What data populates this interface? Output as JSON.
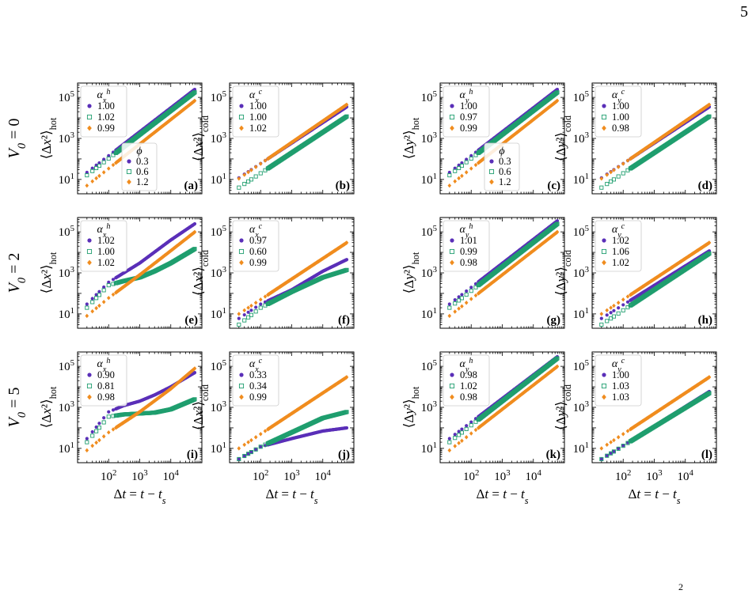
{
  "page_number": "5",
  "footer_mark": "2",
  "row_labels": [
    "V_0 = 0",
    "V_0 = 2",
    "V_0 = 5"
  ],
  "x_axis_label": "Δt = t − t_s",
  "x_tick_labels": [
    "10^2",
    "10^3",
    "10^4"
  ],
  "y_tick_labels": [
    "10^1",
    "10^3",
    "10^5"
  ],
  "phi_legend": {
    "title": "ϕ",
    "entries": [
      "0.3",
      "0.6",
      "1.2"
    ]
  },
  "colors": {
    "phi_0.3": "#5a2fb8",
    "phi_0.6": "#1f9e6e",
    "phi_1.2": "#f08c1e"
  },
  "chart_data": [
    {
      "panel": "(a)",
      "type": "scatter",
      "ylabel": "⟨Δx²⟩_hot",
      "legend_title": "α_x^h",
      "series": [
        {
          "name": "0.3",
          "alpha": "1.00",
          "x": [
            20,
            60000
          ],
          "y": [
            22,
            250000
          ]
        },
        {
          "name": "0.6",
          "alpha": "1.02",
          "x": [
            20,
            60000
          ],
          "y": [
            16,
            180000
          ]
        },
        {
          "name": "1.2",
          "alpha": "0.99",
          "x": [
            20,
            60000
          ],
          "y": [
            5,
            70000
          ]
        }
      ],
      "x_scale": "log",
      "y_scale": "log",
      "xlim": [
        10,
        100000
      ],
      "ylim": [
        2,
        500000
      ]
    },
    {
      "panel": "(b)",
      "type": "scatter",
      "ylabel": "⟨Δx²⟩_cold",
      "legend_title": "α_x^c",
      "series": [
        {
          "name": "0.3",
          "alpha": "1.00",
          "x": [
            20,
            60000
          ],
          "y": [
            12,
            35000
          ]
        },
        {
          "name": "0.6",
          "alpha": "1.00",
          "x": [
            20,
            60000
          ],
          "y": [
            4,
            12000
          ]
        },
        {
          "name": "1.2",
          "alpha": "1.02",
          "x": [
            20,
            60000
          ],
          "y": [
            11,
            45000
          ]
        }
      ],
      "x_scale": "log",
      "y_scale": "log",
      "xlim": [
        10,
        100000
      ],
      "ylim": [
        2,
        500000
      ]
    },
    {
      "panel": "(c)",
      "type": "scatter",
      "ylabel": "⟨Δy²⟩_hot",
      "legend_title": "α_y^h",
      "series": [
        {
          "name": "0.3",
          "alpha": "1.00",
          "x": [
            20,
            60000
          ],
          "y": [
            22,
            250000
          ]
        },
        {
          "name": "0.6",
          "alpha": "0.97",
          "x": [
            20,
            60000
          ],
          "y": [
            16,
            180000
          ]
        },
        {
          "name": "1.2",
          "alpha": "0.99",
          "x": [
            20,
            60000
          ],
          "y": [
            5,
            70000
          ]
        }
      ],
      "x_scale": "log",
      "y_scale": "log",
      "xlim": [
        10,
        100000
      ],
      "ylim": [
        2,
        500000
      ]
    },
    {
      "panel": "(d)",
      "type": "scatter",
      "ylabel": "⟨Δy²⟩_cold",
      "legend_title": "α_y^c",
      "series": [
        {
          "name": "0.3",
          "alpha": "1.00",
          "x": [
            20,
            60000
          ],
          "y": [
            12,
            35000
          ]
        },
        {
          "name": "0.6",
          "alpha": "1.00",
          "x": [
            20,
            60000
          ],
          "y": [
            4,
            12000
          ]
        },
        {
          "name": "1.2",
          "alpha": "0.98",
          "x": [
            20,
            60000
          ],
          "y": [
            11,
            45000
          ]
        }
      ],
      "x_scale": "log",
      "y_scale": "log",
      "xlim": [
        10,
        100000
      ],
      "ylim": [
        2,
        500000
      ]
    },
    {
      "panel": "(e)",
      "type": "scatter",
      "ylabel": "⟨Δx²⟩_hot",
      "legend_title": "α_x^h",
      "series": [
        {
          "name": "0.3",
          "alpha": "1.02",
          "x": [
            20,
            100,
            1000,
            10000,
            60000
          ],
          "y": [
            30,
            350,
            3000,
            40000,
            250000
          ]
        },
        {
          "name": "0.6",
          "alpha": "1.00",
          "x": [
            20,
            100,
            300,
            1000,
            3000,
            10000,
            60000
          ],
          "y": [
            20,
            250,
            400,
            600,
            1200,
            3000,
            15000
          ]
        },
        {
          "name": "1.2",
          "alpha": "1.02",
          "x": [
            20,
            100,
            1000,
            10000,
            60000
          ],
          "y": [
            8,
            60,
            800,
            12000,
            100000
          ]
        }
      ],
      "x_scale": "log",
      "y_scale": "log",
      "xlim": [
        10,
        100000
      ],
      "ylim": [
        2,
        500000
      ]
    },
    {
      "panel": "(f)",
      "type": "scatter",
      "ylabel": "⟨Δx²⟩_cold",
      "legend_title": "α_x^c",
      "series": [
        {
          "name": "0.3",
          "alpha": "0.97",
          "x": [
            20,
            100,
            1000,
            10000,
            60000
          ],
          "y": [
            6,
            30,
            150,
            1200,
            4500
          ]
        },
        {
          "name": "0.6",
          "alpha": "0.60",
          "x": [
            20,
            100,
            1000,
            10000,
            60000
          ],
          "y": [
            3,
            20,
            120,
            600,
            1400
          ]
        },
        {
          "name": "1.2",
          "alpha": "0.99",
          "x": [
            20,
            60000
          ],
          "y": [
            10,
            30000
          ]
        }
      ],
      "x_scale": "log",
      "y_scale": "log",
      "xlim": [
        10,
        100000
      ],
      "ylim": [
        2,
        500000
      ]
    },
    {
      "panel": "(g)",
      "type": "scatter",
      "ylabel": "⟨Δy²⟩_hot",
      "legend_title": "α_y^h",
      "series": [
        {
          "name": "0.3",
          "alpha": "1.01",
          "x": [
            20,
            60000
          ],
          "y": [
            30,
            350000
          ]
        },
        {
          "name": "0.6",
          "alpha": "0.99",
          "x": [
            20,
            60000
          ],
          "y": [
            20,
            250000
          ]
        },
        {
          "name": "1.2",
          "alpha": "0.98",
          "x": [
            20,
            60000
          ],
          "y": [
            8,
            100000
          ]
        }
      ],
      "x_scale": "log",
      "y_scale": "log",
      "xlim": [
        10,
        100000
      ],
      "ylim": [
        2,
        500000
      ]
    },
    {
      "panel": "(h)",
      "type": "scatter",
      "ylabel": "⟨Δy²⟩_cold",
      "legend_title": "α_y^c",
      "series": [
        {
          "name": "0.3",
          "alpha": "1.02",
          "x": [
            20,
            60000
          ],
          "y": [
            6,
            12000
          ]
        },
        {
          "name": "0.6",
          "alpha": "1.06",
          "x": [
            20,
            60000
          ],
          "y": [
            3,
            9000
          ]
        },
        {
          "name": "1.2",
          "alpha": "1.02",
          "x": [
            20,
            60000
          ],
          "y": [
            10,
            30000
          ]
        }
      ],
      "x_scale": "log",
      "y_scale": "log",
      "xlim": [
        10,
        100000
      ],
      "ylim": [
        2,
        500000
      ]
    },
    {
      "panel": "(i)",
      "type": "scatter",
      "ylabel": "⟨Δx²⟩_hot",
      "legend_title": "α_x^h",
      "series": [
        {
          "name": "0.3",
          "alpha": "0.90",
          "x": [
            20,
            100,
            300,
            1000,
            3000,
            10000,
            60000
          ],
          "y": [
            30,
            600,
            1200,
            2000,
            4000,
            10000,
            50000
          ]
        },
        {
          "name": "0.6",
          "alpha": "0.81",
          "x": [
            20,
            100,
            300,
            1000,
            3000,
            10000,
            60000
          ],
          "y": [
            20,
            350,
            450,
            500,
            550,
            800,
            2500
          ]
        },
        {
          "name": "1.2",
          "alpha": "0.98",
          "x": [
            20,
            100,
            1000,
            10000,
            60000
          ],
          "y": [
            8,
            60,
            600,
            8000,
            80000
          ]
        }
      ],
      "x_scale": "log",
      "y_scale": "log",
      "xlim": [
        10,
        100000
      ],
      "ylim": [
        2,
        500000
      ]
    },
    {
      "panel": "(j)",
      "type": "scatter",
      "ylabel": "⟨Δx²⟩_cold",
      "legend_title": "α_x^c",
      "series": [
        {
          "name": "0.3",
          "alpha": "0.33",
          "x": [
            20,
            100,
            1000,
            10000,
            60000
          ],
          "y": [
            3,
            12,
            30,
            70,
            100
          ]
        },
        {
          "name": "0.6",
          "alpha": "0.34",
          "x": [
            20,
            100,
            1000,
            10000,
            60000
          ],
          "y": [
            3,
            12,
            60,
            300,
            600
          ]
        },
        {
          "name": "1.2",
          "alpha": "0.99",
          "x": [
            20,
            60000
          ],
          "y": [
            10,
            30000
          ]
        }
      ],
      "x_scale": "log",
      "y_scale": "log",
      "xlim": [
        10,
        100000
      ],
      "ylim": [
        2,
        500000
      ]
    },
    {
      "panel": "(k)",
      "type": "scatter",
      "ylabel": "⟨Δy²⟩_hot",
      "legend_title": "α_y^h",
      "series": [
        {
          "name": "0.3",
          "alpha": "0.98",
          "x": [
            20,
            60000
          ],
          "y": [
            30,
            300000
          ]
        },
        {
          "name": "0.6",
          "alpha": "1.02",
          "x": [
            20,
            60000
          ],
          "y": [
            20,
            250000
          ]
        },
        {
          "name": "1.2",
          "alpha": "0.98",
          "x": [
            20,
            60000
          ],
          "y": [
            8,
            100000
          ]
        }
      ],
      "x_scale": "log",
      "y_scale": "log",
      "xlim": [
        10,
        100000
      ],
      "ylim": [
        2,
        500000
      ]
    },
    {
      "panel": "(l)",
      "type": "scatter",
      "ylabel": "⟨Δy²⟩_cold",
      "legend_title": "α_y^c",
      "series": [
        {
          "name": "0.3",
          "alpha": "1.00",
          "x": [
            20,
            60000
          ],
          "y": [
            3,
            6000
          ]
        },
        {
          "name": "0.6",
          "alpha": "1.03",
          "x": [
            20,
            60000
          ],
          "y": [
            3,
            5000
          ]
        },
        {
          "name": "1.2",
          "alpha": "1.03",
          "x": [
            20,
            60000
          ],
          "y": [
            10,
            30000
          ]
        }
      ],
      "x_scale": "log",
      "y_scale": "log",
      "xlim": [
        10,
        100000
      ],
      "ylim": [
        2,
        500000
      ]
    }
  ]
}
